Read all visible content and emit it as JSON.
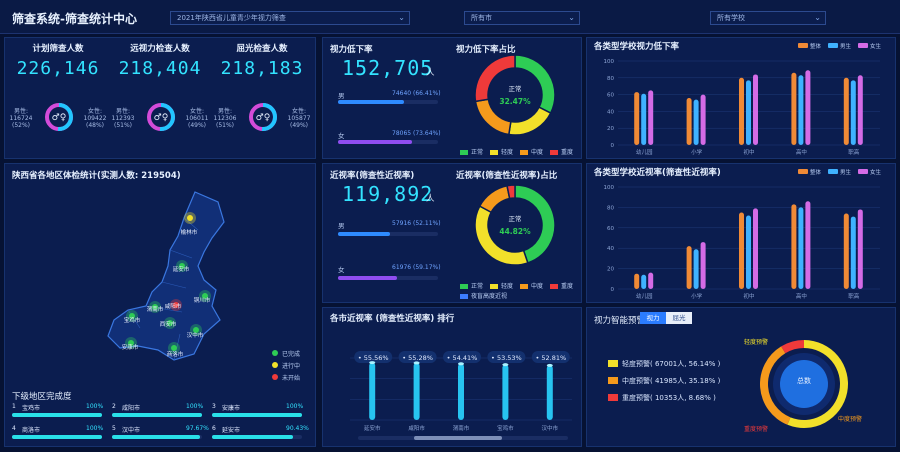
{
  "header": {
    "title": "筛查系统-筛查统计中心",
    "selects": [
      "2021年陕西省儿童青少年视力筛查",
      "所有市",
      "所有学校"
    ]
  },
  "stats": {
    "planned": {
      "label": "计划筛查人数",
      "value": "226,146",
      "male": "男性: 116724 (52%)",
      "female": "女性: 109422 (48%)"
    },
    "vision": {
      "label": "远视力检查人数",
      "value": "218,404",
      "male": "男性: 112393 (51%)",
      "female": "女性: 106011 (49%)"
    },
    "refraction": {
      "label": "屈光检查人数",
      "value": "218,183",
      "male": "男性: 112306 (51%)",
      "female": "女性: 105877 (49%)"
    }
  },
  "decline": {
    "title": "视力低下率",
    "value": "152,705",
    "unit": "人",
    "male_label": "男",
    "male_value": "74640 (66.41%)",
    "male_pct": 0.664,
    "female_label": "女",
    "female_value": "78065 (73.64%)",
    "female_pct": 0.736,
    "ratio_title": "视力低下率占比",
    "center_label": "正常",
    "center_value": "32.47%",
    "legend": [
      "正常",
      "轻度",
      "中度",
      "重度"
    ]
  },
  "myopia": {
    "title": "近视率(筛查性近视率)",
    "value": "119,892",
    "unit": "人",
    "male_label": "男",
    "male_value": "57916 (52.11%)",
    "male_pct": 0.521,
    "female_label": "女",
    "female_value": "61976 (59.17%)",
    "female_pct": 0.592,
    "ratio_title": "近视率(筛查性近视率)占比",
    "center_label": "正常",
    "center_value": "44.82%",
    "legend": [
      "正常",
      "轻度",
      "中度",
      "重度",
      "夜盲高度近视"
    ]
  },
  "map": {
    "title": "陕西省各地区体检统计(实测人数: 219504)",
    "cities": [
      "榆林市",
      "延安市",
      "铜川市",
      "咸阳市",
      "渭南市",
      "宝鸡市",
      "西安市",
      "汉中市",
      "安康市",
      "商洛市"
    ],
    "legend": [
      "已完成",
      "进行中",
      "未开始"
    ]
  },
  "completion": {
    "title": "下级地区完成度",
    "items": [
      {
        "rank": "1",
        "name": "宝鸡市",
        "pct": "100%",
        "v": 1.0
      },
      {
        "rank": "2",
        "name": "咸阳市",
        "pct": "100%",
        "v": 1.0
      },
      {
        "rank": "3",
        "name": "安康市",
        "pct": "100%",
        "v": 1.0
      },
      {
        "rank": "4",
        "name": "商洛市",
        "pct": "100%",
        "v": 1.0
      },
      {
        "rank": "5",
        "name": "汉中市",
        "pct": "97.67%",
        "v": 0.9767
      },
      {
        "rank": "6",
        "name": "延安市",
        "pct": "90.43%",
        "v": 0.9043
      }
    ]
  },
  "ranking": {
    "title": "各市近视率 (筛查性近视率) 排行",
    "labels": [
      "55.56%",
      "55.28%",
      "54.41%",
      "53.53%",
      "52.81%"
    ]
  },
  "warning": {
    "title": "视力智能预警",
    "tabs": [
      "视力",
      "屈光"
    ],
    "items": [
      "轻度预警( 67001人, 56.14% )",
      "中度预警( 41985人, 35.18% )",
      "重度预警( 10353人, 8.68% )"
    ],
    "center": "总数",
    "ring_labels": [
      "轻度预警",
      "中度预警",
      "重度预警"
    ]
  },
  "colors": {
    "normal": "#2ecc55",
    "mild": "#f2e02a",
    "moderate": "#f59a1c",
    "severe": "#ef3a3a",
    "extra": "#3c7cff",
    "overall": "#f08a36",
    "male": "#3fb2ff",
    "female": "#d46be6"
  },
  "chart_data": [
    {
      "type": "bar",
      "title": "各类型学校视力低下率",
      "categories": [
        "幼儿园",
        "小学",
        "初中",
        "高中",
        "职高"
      ],
      "series": [
        {
          "name": "整体",
          "values": [
            63,
            56,
            80,
            86,
            80
          ]
        },
        {
          "name": "男生",
          "values": [
            61,
            54,
            77,
            83,
            77
          ]
        },
        {
          "name": "女生",
          "values": [
            65,
            60,
            84,
            89,
            83
          ]
        }
      ],
      "ylim": [
        0,
        100
      ],
      "yticks": [
        0,
        20,
        40,
        60,
        80,
        100
      ]
    },
    {
      "type": "bar",
      "title": "各类型学校近视率(筛查性近视率)",
      "categories": [
        "幼儿园",
        "小学",
        "初中",
        "高中",
        "职高"
      ],
      "series": [
        {
          "name": "整体",
          "values": [
            15,
            42,
            75,
            83,
            74
          ]
        },
        {
          "name": "男生",
          "values": [
            14,
            39,
            72,
            80,
            71
          ]
        },
        {
          "name": "女生",
          "values": [
            16,
            46,
            79,
            86,
            78
          ]
        }
      ],
      "ylim": [
        0,
        100
      ],
      "yticks": [
        0,
        20,
        40,
        60,
        80,
        100
      ]
    },
    {
      "type": "bar",
      "title": "各市近视率 (筛查性近视率) 排行",
      "categories": [
        "延安市",
        "咸阳市",
        "渭南市",
        "宝鸡市",
        "汉中市"
      ],
      "values": [
        55.56,
        55.28,
        54.41,
        53.53,
        52.81
      ]
    },
    {
      "type": "pie",
      "title": "视力低下率占比",
      "categories": [
        "正常",
        "轻度",
        "中度",
        "重度"
      ],
      "values": [
        32.47,
        20,
        20,
        27.53
      ]
    },
    {
      "type": "pie",
      "title": "近视率(筛查性近视率)占比",
      "categories": [
        "正常",
        "轻度",
        "中度",
        "重度"
      ],
      "values": [
        44.82,
        38,
        14,
        3.18
      ]
    }
  ]
}
